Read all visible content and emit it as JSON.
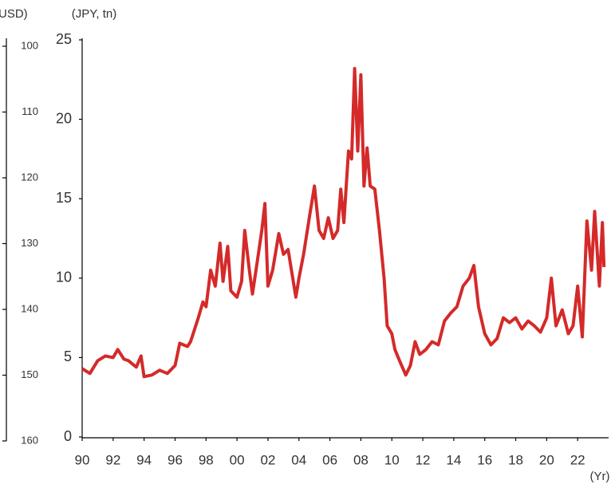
{
  "chart_data": {
    "type": "line",
    "y_label": "(JPY, tn)",
    "y2_label": "USD)",
    "x_label": "(Yr)",
    "x": [
      1990,
      1990.5,
      1991,
      1991.5,
      1992,
      1992.3,
      1992.7,
      1993,
      1993.5,
      1993.8,
      1994,
      1994.5,
      1995,
      1995.5,
      1996,
      1996.3,
      1996.8,
      1997,
      1997.5,
      1997.8,
      1998,
      1998.3,
      1998.6,
      1998.9,
      1999.1,
      1999.4,
      1999.6,
      2000,
      2000.3,
      2000.5,
      2000.8,
      2001,
      2001.3,
      2001.6,
      2001.8,
      2002,
      2002.3,
      2002.7,
      2003,
      2003.3,
      2003.6,
      2003.8,
      2004,
      2004.3,
      2004.7,
      2005,
      2005.3,
      2005.6,
      2005.9,
      2006.2,
      2006.5,
      2006.7,
      2006.9,
      2007.2,
      2007.4,
      2007.6,
      2007.8,
      2008,
      2008.2,
      2008.4,
      2008.6,
      2008.9,
      2009.2,
      2009.5,
      2009.7,
      2010,
      2010.2,
      2010.5,
      2010.9,
      2011.2,
      2011.5,
      2011.8,
      2012.2,
      2012.6,
      2013,
      2013.4,
      2013.8,
      2014.2,
      2014.6,
      2015,
      2015.3,
      2015.6,
      2016,
      2016.4,
      2016.8,
      2017.2,
      2017.6,
      2018,
      2018.4,
      2018.8,
      2019.2,
      2019.6,
      2020,
      2020.3,
      2020.6,
      2021,
      2021.4,
      2021.7,
      2022,
      2022.3,
      2022.6,
      2022.9,
      2023.1,
      2023.4,
      2023.6,
      2023.7
    ],
    "series": [
      {
        "name": "JPY",
        "color": "#d42a2a",
        "values": [
          4.3,
          4.0,
          4.8,
          5.1,
          5.0,
          5.5,
          4.9,
          4.8,
          4.4,
          5.1,
          3.8,
          3.9,
          4.2,
          4.0,
          4.5,
          5.9,
          5.7,
          6.0,
          7.5,
          8.5,
          8.2,
          10.5,
          9.5,
          12.2,
          9.8,
          12.0,
          9.2,
          8.8,
          9.8,
          13.0,
          10.5,
          9.0,
          11.0,
          13.0,
          14.7,
          9.5,
          10.5,
          12.8,
          11.5,
          11.8,
          10.0,
          8.8,
          10.0,
          11.5,
          14.0,
          15.8,
          13.0,
          12.5,
          13.8,
          12.5,
          13.0,
          15.6,
          13.5,
          18.0,
          17.5,
          23.2,
          18.0,
          22.8,
          15.8,
          18.2,
          15.8,
          15.6,
          13.0,
          10.0,
          7.0,
          6.5,
          5.5,
          4.8,
          3.9,
          4.5,
          6.0,
          5.2,
          5.5,
          6.0,
          5.8,
          7.3,
          7.8,
          8.2,
          9.5,
          10.0,
          10.8,
          8.2,
          6.5,
          5.8,
          6.2,
          7.5,
          7.2,
          7.5,
          6.8,
          7.3,
          7.0,
          6.6,
          7.5,
          10.0,
          7.0,
          8.0,
          6.5,
          7.0,
          9.5,
          6.3,
          13.6,
          10.5,
          14.2,
          9.5,
          13.5,
          10.7
        ]
      }
    ],
    "xlim": [
      1990,
      2024
    ],
    "xticks": [
      {
        "value": 1990,
        "label": "90"
      },
      {
        "value": 1992,
        "label": "92"
      },
      {
        "value": 1994,
        "label": "94"
      },
      {
        "value": 1996,
        "label": "96"
      },
      {
        "value": 1998,
        "label": "98"
      },
      {
        "value": 2000,
        "label": "00"
      },
      {
        "value": 2002,
        "label": "02"
      },
      {
        "value": 2004,
        "label": "04"
      },
      {
        "value": 2006,
        "label": "06"
      },
      {
        "value": 2008,
        "label": "08"
      },
      {
        "value": 2010,
        "label": "10"
      },
      {
        "value": 2012,
        "label": "12"
      },
      {
        "value": 2014,
        "label": "14"
      },
      {
        "value": 2016,
        "label": "16"
      },
      {
        "value": 2018,
        "label": "18"
      },
      {
        "value": 2020,
        "label": "20"
      },
      {
        "value": 2022,
        "label": "22"
      }
    ],
    "ylim": [
      0,
      25
    ],
    "yticks": [
      0,
      5,
      10,
      15,
      20,
      25
    ],
    "y2lim": [
      160,
      100
    ],
    "y2ticks": [
      100,
      110,
      120,
      130,
      140,
      150,
      160
    ]
  }
}
